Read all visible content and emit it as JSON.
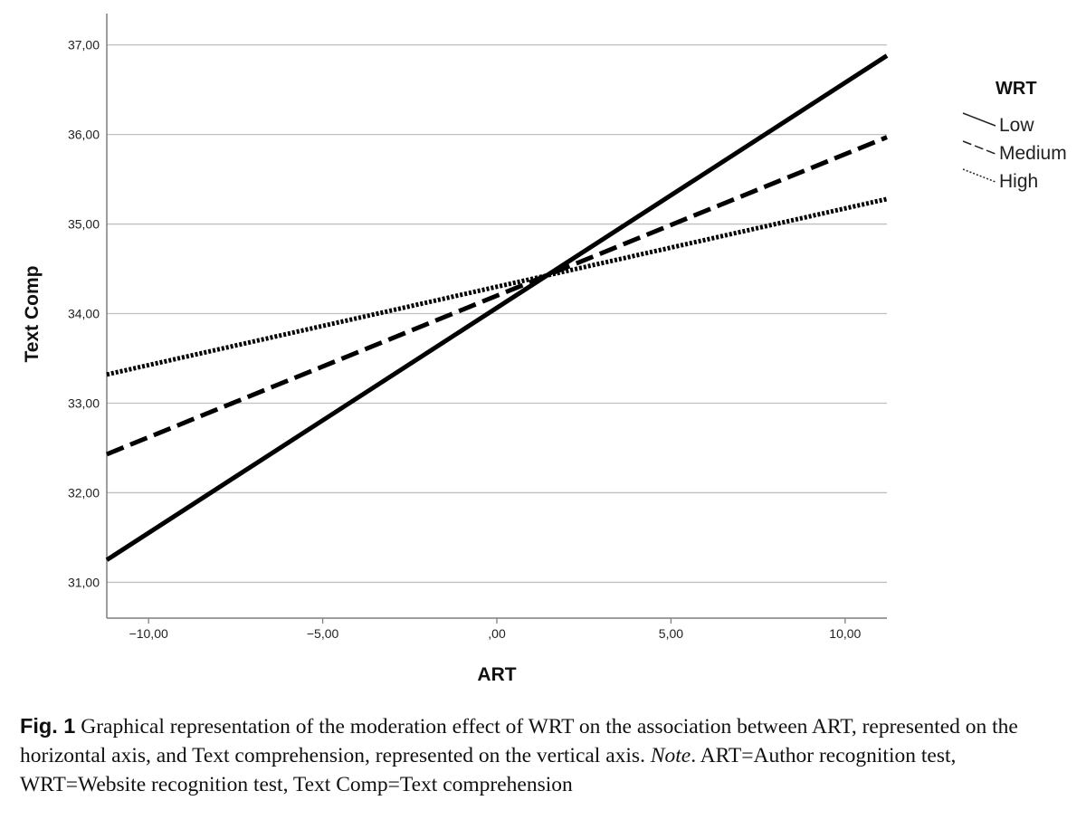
{
  "chart_data": {
    "type": "line",
    "xlabel": "ART",
    "ylabel": "Text Comp",
    "xlim": [
      -11.2,
      11.2
    ],
    "ylim": [
      30.6,
      37.35
    ],
    "x_ticks": [
      -10,
      -5,
      0,
      5,
      10
    ],
    "x_tick_labels": [
      "−10,00",
      "−5,00",
      ",00",
      "5,00",
      "10,00"
    ],
    "y_ticks": [
      31,
      32,
      33,
      34,
      35,
      36,
      37
    ],
    "y_tick_labels": [
      "31,00",
      "32,00",
      "33,00",
      "34,00",
      "35,00",
      "36,00",
      "37,00"
    ],
    "grid": "horizontal",
    "legend": {
      "title": "WRT",
      "placement": "right",
      "entries": [
        {
          "label": "Low",
          "style": "solid"
        },
        {
          "label": "Medium",
          "style": "dashed"
        },
        {
          "label": "High",
          "style": "dotted"
        }
      ]
    },
    "series": [
      {
        "name": "Low",
        "style": "solid",
        "x": [
          -11.2,
          11.2
        ],
        "y": [
          31.25,
          36.88
        ]
      },
      {
        "name": "Medium",
        "style": "dashed",
        "x": [
          -11.2,
          11.2
        ],
        "y": [
          32.43,
          35.97
        ]
      },
      {
        "name": "High",
        "style": "dotted",
        "x": [
          -11.2,
          11.2
        ],
        "y": [
          33.32,
          35.28
        ]
      }
    ],
    "colors": {
      "lines": "#000000",
      "grid": "#bfbfbf",
      "axis": "#7f7f7f"
    }
  },
  "caption": {
    "label": "Fig. 1",
    "text_main": " Graphical representation of the moderation effect of WRT on the association between ART, represented on the horizontal axis, and Text comprehension, represented on the vertical axis. ",
    "note_word": "Note",
    "text_note": ". ART=Author recognition test, WRT=Website recognition test, Text Comp=Text comprehension"
  }
}
